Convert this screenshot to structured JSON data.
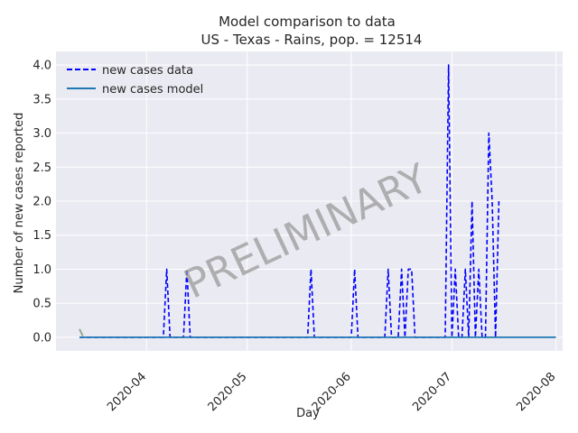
{
  "chart_data": {
    "type": "line",
    "title_line1": "Model comparison to data",
    "title_line2": "US - Texas - Rains, pop. = 12514",
    "xlabel": "Day",
    "ylabel": "Number of new cases reported",
    "x_ticks": [
      "2020-04",
      "2020-05",
      "2020-06",
      "2020-07",
      "2020-08"
    ],
    "y_ticks": [
      "0.0",
      "0.5",
      "1.0",
      "1.5",
      "2.0",
      "2.5",
      "3.0",
      "3.5",
      "4.0"
    ],
    "xlim": [
      "2020-03-05",
      "2020-08-03"
    ],
    "ylim": [
      -0.2,
      4.2
    ],
    "grid": true,
    "legend_position": "top-left",
    "watermark": "PRELIMINARY",
    "series": [
      {
        "name": "new cases data",
        "style": "dashed",
        "color": "#0000ff",
        "x_range": [
          "2020-03-12",
          "2020-07-15"
        ],
        "default_value": 0,
        "points": [
          {
            "date": "2020-04-07",
            "value": 1
          },
          {
            "date": "2020-04-13",
            "value": 1
          },
          {
            "date": "2020-05-20",
            "value": 1
          },
          {
            "date": "2020-06-02",
            "value": 1
          },
          {
            "date": "2020-06-12",
            "value": 1
          },
          {
            "date": "2020-06-16",
            "value": 1
          },
          {
            "date": "2020-06-18",
            "value": 1
          },
          {
            "date": "2020-06-19",
            "value": 1
          },
          {
            "date": "2020-06-30",
            "value": 4
          },
          {
            "date": "2020-07-02",
            "value": 1
          },
          {
            "date": "2020-07-05",
            "value": 1
          },
          {
            "date": "2020-07-07",
            "value": 2
          },
          {
            "date": "2020-07-09",
            "value": 1
          },
          {
            "date": "2020-07-12",
            "value": 3
          },
          {
            "date": "2020-07-13",
            "value": 2
          },
          {
            "date": "2020-07-15",
            "value": 2
          }
        ]
      },
      {
        "name": "new cases model",
        "style": "solid",
        "color": "#1f77b4",
        "x": [
          "2020-03-12",
          "2020-08-01"
        ],
        "values": [
          0,
          0
        ]
      }
    ],
    "extra_mark": {
      "color": "#8fa88f",
      "x": [
        "2020-03-12",
        "2020-03-13"
      ],
      "values": [
        0.12,
        0.02
      ]
    }
  }
}
